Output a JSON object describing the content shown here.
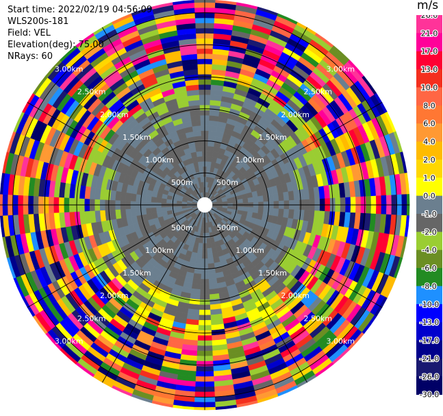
{
  "info": {
    "start_time": "Start time: 2022/02/19 04:56:09",
    "instrument": "WLS200s-181",
    "field": "Field: VEL",
    "elevation": "Elevation(deg): 75.00",
    "nrays": "NRays: 60"
  },
  "chart_data": {
    "type": "heatmap",
    "projection": "polar-ppi",
    "field": "VEL",
    "unit": "m/s",
    "rays": 60,
    "range_rings_km": [
      0.5,
      1.0,
      1.5,
      2.0,
      2.5,
      3.0
    ],
    "range_ring_labels": [
      "500m",
      "1.00km",
      "1.50km",
      "2.00km",
      "2.50km",
      "3.00km"
    ],
    "max_range_km": 3.2,
    "gate_km": 0.08,
    "azimuth_spokes": 12,
    "colorbar": {
      "ticks": [
        "26.0",
        "21.0",
        "17.0",
        "13.0",
        "10.0",
        "8.0",
        "6.0",
        "4.0",
        "2.0",
        "1.0",
        "0.0",
        "-1.0",
        "-2.0",
        "-4.0",
        "-6.0",
        "-8.0",
        "-10.0",
        "-13.0",
        "-17.0",
        "-21.0",
        "-26.0",
        "-30.0"
      ],
      "colors": [
        "#ff3399",
        "#ff0099",
        "#ff0033",
        "#f42f1e",
        "#ff6644",
        "#ff7733",
        "#ff9933",
        "#ffbb00",
        "#ffd700",
        "#ffff00",
        "#6b7f8f",
        "#666666",
        "#9acd32",
        "#6b8e23",
        "#228b22",
        "#1e90ff",
        "#0000ff",
        "#0000cd",
        "#00008b",
        "#191970",
        "#000066"
      ]
    }
  }
}
